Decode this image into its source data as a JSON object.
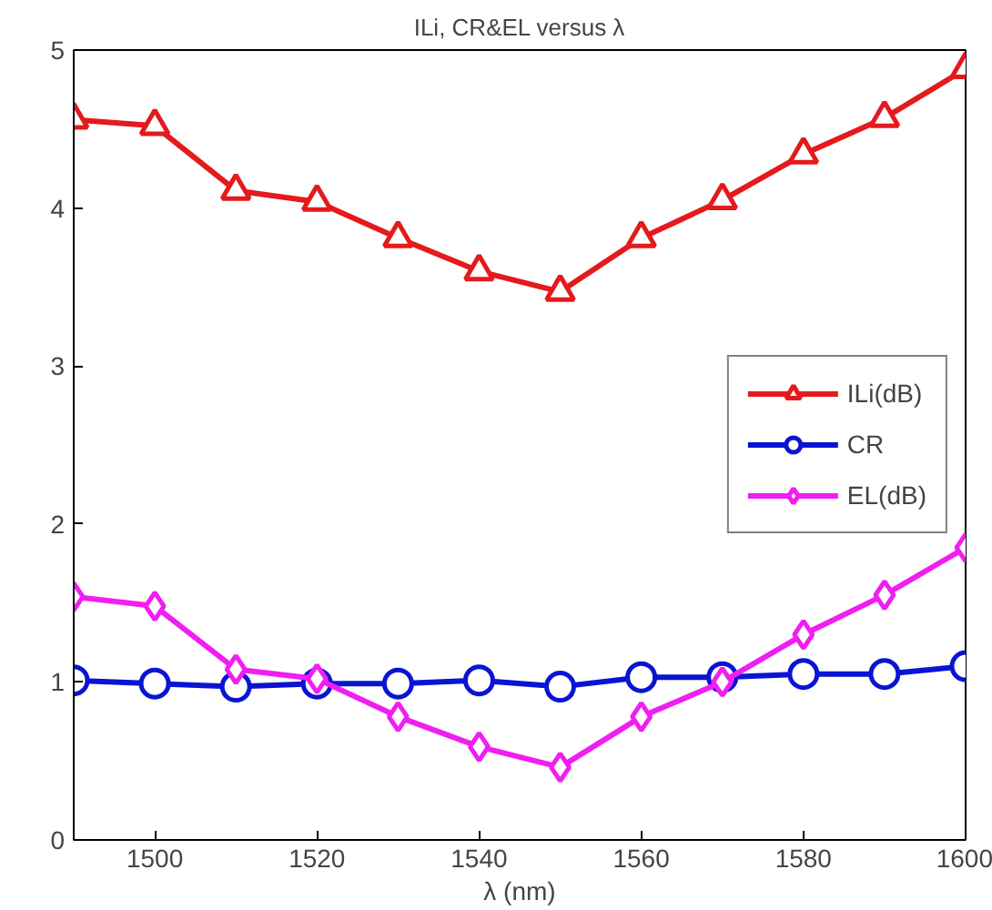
{
  "chart_data": {
    "type": "line",
    "title": "ILi, CR&EL versus λ",
    "xlabel": "λ (nm)",
    "x": [
      1490,
      1500,
      1510,
      1520,
      1530,
      1540,
      1550,
      1560,
      1570,
      1580,
      1590,
      1600
    ],
    "series": [
      {
        "name": "ILi(dB)",
        "color": "#e41a1c",
        "marker": "triangle",
        "values": [
          4.56,
          4.52,
          4.11,
          4.04,
          3.81,
          3.6,
          3.47,
          3.81,
          4.05,
          4.34,
          4.57,
          4.88
        ]
      },
      {
        "name": "CR",
        "color": "#0a14d2",
        "marker": "circle",
        "values": [
          1.01,
          0.99,
          0.97,
          0.99,
          0.99,
          1.01,
          0.97,
          1.03,
          1.03,
          1.05,
          1.05,
          1.1
        ]
      },
      {
        "name": "EL(dB)",
        "color": "#f01ef0",
        "marker": "diamond",
        "values": [
          1.54,
          1.48,
          1.08,
          1.02,
          0.78,
          0.59,
          0.46,
          0.78,
          1.0,
          1.3,
          1.55,
          1.85
        ]
      }
    ],
    "xlim": [
      1490,
      1600
    ],
    "xticks": [
      1500,
      1520,
      1540,
      1560,
      1580,
      1600
    ],
    "ylim": [
      0,
      5
    ],
    "yticks": [
      0,
      1,
      2,
      3,
      4,
      5
    ],
    "grid": false,
    "legend": "right",
    "line_style": "solid"
  }
}
